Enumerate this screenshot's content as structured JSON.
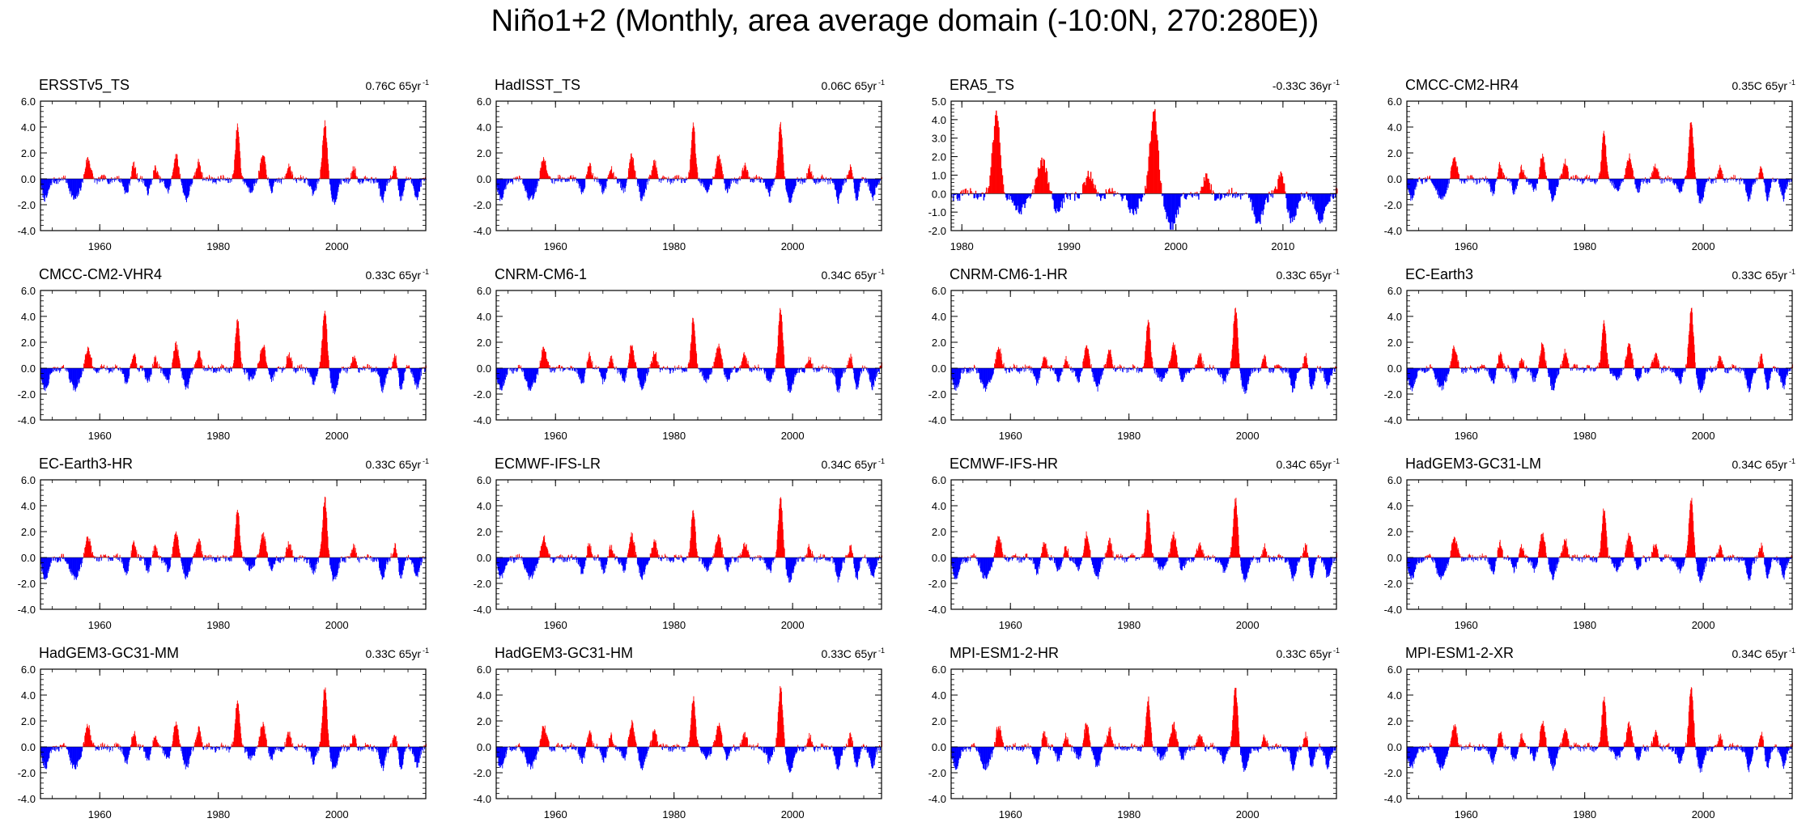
{
  "title": "Niño1+2 (Monthly, area average domain (-10:0N, 270:280E))",
  "colors": {
    "positive": "#ff0000",
    "negative": "#0000ff",
    "frame": "#000000"
  },
  "chart_data": [
    {
      "type": "bar",
      "name": "ERSSTv5_TS",
      "stat": "0.76C 65yr",
      "xlim": [
        1950,
        2015
      ],
      "ylim": [
        -4.0,
        6.0
      ],
      "xticks": [
        1960,
        1980,
        2000
      ],
      "yticks": [
        6.0,
        4.0,
        2.0,
        0.0,
        -2.0,
        -4.0
      ],
      "yformat": 1,
      "peak_1983": 4.1,
      "peak_1998": 4.4
    },
    {
      "type": "bar",
      "name": "HadISST_TS",
      "stat": "0.06C 65yr",
      "xlim": [
        1950,
        2015
      ],
      "ylim": [
        -4.0,
        6.0
      ],
      "xticks": [
        1960,
        1980,
        2000
      ],
      "yticks": [
        6.0,
        4.0,
        2.0,
        0.0,
        -2.0,
        -4.0
      ],
      "yformat": 1,
      "peak_1983": 4.2,
      "peak_1998": 4.2
    },
    {
      "type": "bar",
      "name": "ERA5_TS",
      "stat": "-0.33C 36yr",
      "xlim": [
        1979,
        2015
      ],
      "ylim": [
        -2.0,
        5.0
      ],
      "xticks": [
        1980,
        1990,
        2000,
        2010
      ],
      "yticks": [
        5.0,
        4.0,
        3.0,
        2.0,
        1.0,
        0.0,
        -1.0,
        -2.0
      ],
      "yformat": 1,
      "peak_1983": 4.3,
      "peak_1998": 4.5
    },
    {
      "type": "bar",
      "name": "CMCC-CM2-HR4",
      "stat": "0.35C 65yr",
      "xlim": [
        1950,
        2015
      ],
      "ylim": [
        -4.0,
        6.0
      ],
      "xticks": [
        1960,
        1980,
        2000
      ],
      "yticks": [
        6.0,
        4.0,
        2.0,
        0.0,
        -2.0,
        -4.0
      ],
      "yformat": 1,
      "peak_1983": 3.6,
      "peak_1998": 4.6
    },
    {
      "type": "bar",
      "name": "CMCC-CM2-VHR4",
      "stat": "0.33C 65yr",
      "xlim": [
        1950,
        2015
      ],
      "ylim": [
        -4.0,
        6.0
      ],
      "xticks": [
        1960,
        1980,
        2000
      ],
      "yticks": [
        6.0,
        4.0,
        2.0,
        0.0,
        -2.0,
        -4.0
      ],
      "yformat": 1,
      "peak_1983": 3.7,
      "peak_1998": 4.6
    },
    {
      "type": "bar",
      "name": "CNRM-CM6-1",
      "stat": "0.34C 65yr",
      "xlim": [
        1950,
        2015
      ],
      "ylim": [
        -4.0,
        6.0
      ],
      "xticks": [
        1960,
        1980,
        2000
      ],
      "yticks": [
        6.0,
        4.0,
        2.0,
        0.0,
        -2.0,
        -4.0
      ],
      "yformat": 1,
      "peak_1983": 3.8,
      "peak_1998": 4.6
    },
    {
      "type": "bar",
      "name": "CNRM-CM6-1-HR",
      "stat": "0.33C 65yr",
      "xlim": [
        1950,
        2015
      ],
      "ylim": [
        -4.0,
        6.0
      ],
      "xticks": [
        1960,
        1980,
        2000
      ],
      "yticks": [
        6.0,
        4.0,
        2.0,
        0.0,
        -2.0,
        -4.0
      ],
      "yformat": 1,
      "peak_1983": 3.7,
      "peak_1998": 4.7
    },
    {
      "type": "bar",
      "name": "EC-Earth3",
      "stat": "0.33C 65yr",
      "xlim": [
        1950,
        2015
      ],
      "ylim": [
        -4.0,
        6.0
      ],
      "xticks": [
        1960,
        1980,
        2000
      ],
      "yticks": [
        6.0,
        4.0,
        2.0,
        0.0,
        -2.0,
        -4.0
      ],
      "yformat": 1,
      "peak_1983": 3.7,
      "peak_1998": 4.6
    },
    {
      "type": "bar",
      "name": "EC-Earth3-HR",
      "stat": "0.33C 65yr",
      "xlim": [
        1950,
        2015
      ],
      "ylim": [
        -4.0,
        6.0
      ],
      "xticks": [
        1960,
        1980,
        2000
      ],
      "yticks": [
        6.0,
        4.0,
        2.0,
        0.0,
        -2.0,
        -4.0
      ],
      "yformat": 1,
      "peak_1983": 3.7,
      "peak_1998": 4.6
    },
    {
      "type": "bar",
      "name": "ECMWF-IFS-LR",
      "stat": "0.34C 65yr",
      "xlim": [
        1950,
        2015
      ],
      "ylim": [
        -4.0,
        6.0
      ],
      "xticks": [
        1960,
        1980,
        2000
      ],
      "yticks": [
        6.0,
        4.0,
        2.0,
        0.0,
        -2.0,
        -4.0
      ],
      "yformat": 1,
      "peak_1983": 3.7,
      "peak_1998": 4.5
    },
    {
      "type": "bar",
      "name": "ECMWF-IFS-HR",
      "stat": "0.34C 65yr",
      "xlim": [
        1950,
        2015
      ],
      "ylim": [
        -4.0,
        6.0
      ],
      "xticks": [
        1960,
        1980,
        2000
      ],
      "yticks": [
        6.0,
        4.0,
        2.0,
        0.0,
        -2.0,
        -4.0
      ],
      "yformat": 1,
      "peak_1983": 3.7,
      "peak_1998": 4.6
    },
    {
      "type": "bar",
      "name": "HadGEM3-GC31-LM",
      "stat": "0.34C 65yr",
      "xlim": [
        1950,
        2015
      ],
      "ylim": [
        -4.0,
        6.0
      ],
      "xticks": [
        1960,
        1980,
        2000
      ],
      "yticks": [
        6.0,
        4.0,
        2.0,
        0.0,
        -2.0,
        -4.0
      ],
      "yformat": 1,
      "peak_1983": 3.7,
      "peak_1998": 4.6
    },
    {
      "type": "bar",
      "name": "HadGEM3-GC31-MM",
      "stat": "0.33C 65yr",
      "xlim": [
        1950,
        2015
      ],
      "ylim": [
        -4.0,
        6.0
      ],
      "xticks": [
        1960,
        1980,
        2000
      ],
      "yticks": [
        6.0,
        4.0,
        2.0,
        0.0,
        -2.0,
        -4.0
      ],
      "yformat": 1,
      "peak_1983": 3.7,
      "peak_1998": 4.6
    },
    {
      "type": "bar",
      "name": "HadGEM3-GC31-HM",
      "stat": "0.33C 65yr",
      "xlim": [
        1950,
        2015
      ],
      "ylim": [
        -4.0,
        6.0
      ],
      "xticks": [
        1960,
        1980,
        2000
      ],
      "yticks": [
        6.0,
        4.0,
        2.0,
        0.0,
        -2.0,
        -4.0
      ],
      "yformat": 1,
      "peak_1983": 3.7,
      "peak_1998": 4.6
    },
    {
      "type": "bar",
      "name": "MPI-ESM1-2-HR",
      "stat": "0.33C 65yr",
      "xlim": [
        1950,
        2015
      ],
      "ylim": [
        -4.0,
        6.0
      ],
      "xticks": [
        1960,
        1980,
        2000
      ],
      "yticks": [
        6.0,
        4.0,
        2.0,
        0.0,
        -2.0,
        -4.0
      ],
      "yformat": 1,
      "peak_1983": 3.7,
      "peak_1998": 4.6
    },
    {
      "type": "bar",
      "name": "MPI-ESM1-2-XR",
      "stat": "0.34C 65yr",
      "xlim": [
        1950,
        2015
      ],
      "ylim": [
        -4.0,
        6.0
      ],
      "xticks": [
        1960,
        1980,
        2000
      ],
      "yticks": [
        6.0,
        4.0,
        2.0,
        0.0,
        -2.0,
        -4.0
      ],
      "yformat": 1,
      "peak_1983": 3.7,
      "peak_1998": 4.6
    }
  ]
}
